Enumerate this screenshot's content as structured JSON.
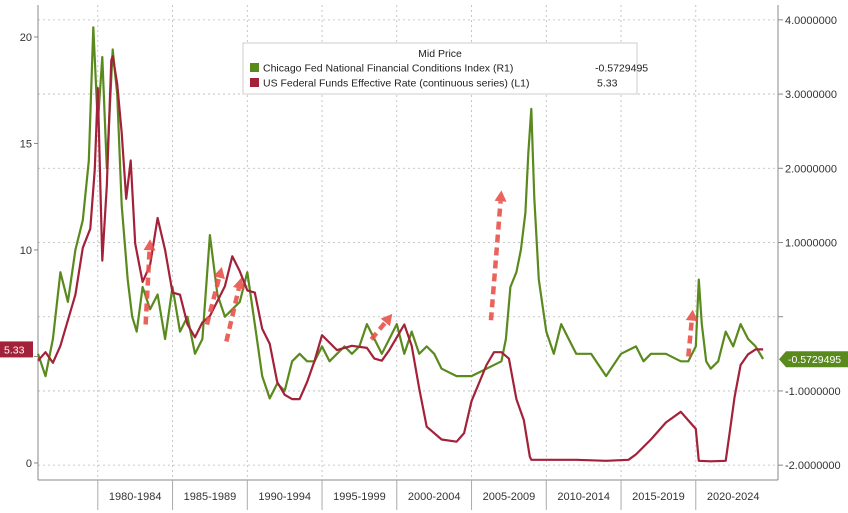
{
  "chart_data": {
    "type": "line",
    "legend": {
      "title": "Mid Price",
      "placement": "top-center",
      "entries": [
        {
          "label": "Chicago Fed National Financial Conditions Index  (R1)",
          "value": "-0.5729495",
          "color": "#5a8a1e"
        },
        {
          "label": "US Federal Funds Effective Rate (continuous series)  (L1)",
          "value": "5.33",
          "color": "#a3223a"
        }
      ]
    },
    "x_tick_labels": [
      "1980-1984",
      "1985-1989",
      "1990-1994",
      "1995-1999",
      "2000-2004",
      "2005-2009",
      "2010-2014",
      "2015-2019",
      "2020-2024"
    ],
    "xlim": [
      1976,
      2025.5
    ],
    "y_left": {
      "ticks": [
        0,
        5,
        10,
        15,
        20
      ],
      "tick_labels": [
        "0",
        "",
        "10",
        "15",
        "20"
      ],
      "ylim": [
        -0.8,
        21.5
      ]
    },
    "y_right": {
      "ticks": [
        -2,
        -1,
        0,
        1,
        2,
        3,
        4
      ],
      "tick_labels": [
        "-2.0000000",
        "-1.0000000",
        "",
        "1.0000000",
        "2.0000000",
        "3.0000000",
        "4.0000000"
      ],
      "ylim": [
        -2.2,
        4.2
      ]
    },
    "last_value_badges": [
      {
        "axis": "left",
        "value": 5.33,
        "text": "5.33",
        "color": "#a3223a"
      },
      {
        "axis": "right",
        "value": -0.5729495,
        "text": "-0.5729495",
        "color": "#5a8a1e"
      }
    ],
    "grid": true,
    "series": [
      {
        "axis": "right",
        "color": "#5a8a1e",
        "x": [
          1976,
          1976.5,
          1977,
          1977.5,
          1978,
          1978.5,
          1979,
          1979.4,
          1979.7,
          1980,
          1980.3,
          1980.6,
          1981,
          1981.3,
          1981.6,
          1982,
          1982.3,
          1982.6,
          1983,
          1983.5,
          1984,
          1984.5,
          1985,
          1985.5,
          1986,
          1986.5,
          1987,
          1987.5,
          1988,
          1988.5,
          1989,
          1989.5,
          1990,
          1990.5,
          1991,
          1991.5,
          1992,
          1992.5,
          1993,
          1993.5,
          1994,
          1994.5,
          1995,
          1995.5,
          1996,
          1996.5,
          1997,
          1997.5,
          1998,
          1998.5,
          1999,
          1999.5,
          2000,
          2000.5,
          2001,
          2001.5,
          2002,
          2002.5,
          2003,
          2004,
          2005,
          2006,
          2007,
          2007.3,
          2007.6,
          2008,
          2008.3,
          2008.6,
          2008.8,
          2009,
          2009.2,
          2009.5,
          2010,
          2010.5,
          2011,
          2011.5,
          2012,
          2013,
          2014,
          2015,
          2016,
          2016.5,
          2017,
          2018,
          2019,
          2019.5,
          2020,
          2020.2,
          2020.4,
          2020.7,
          2021,
          2021.5,
          2022,
          2022.5,
          2023,
          2023.5,
          2024,
          2024.5
        ],
        "y": [
          -0.5,
          -0.8,
          -0.3,
          0.6,
          0.2,
          0.9,
          1.3,
          2.1,
          3.9,
          2.6,
          3.5,
          2.0,
          3.6,
          3.0,
          1.5,
          0.5,
          0.0,
          -0.2,
          0.4,
          0.1,
          0.3,
          -0.3,
          0.4,
          -0.2,
          0.0,
          -0.5,
          -0.3,
          1.1,
          0.3,
          0.0,
          0.1,
          0.2,
          0.6,
          -0.1,
          -0.8,
          -1.1,
          -0.9,
          -1.0,
          -0.6,
          -0.5,
          -0.6,
          -0.6,
          -0.4,
          -0.6,
          -0.5,
          -0.4,
          -0.5,
          -0.4,
          -0.1,
          -0.3,
          -0.5,
          -0.3,
          -0.1,
          -0.5,
          -0.2,
          -0.5,
          -0.4,
          -0.5,
          -0.7,
          -0.8,
          -0.8,
          -0.7,
          -0.6,
          -0.3,
          0.4,
          0.6,
          0.9,
          1.4,
          2.2,
          2.8,
          1.6,
          0.5,
          -0.2,
          -0.5,
          -0.1,
          -0.3,
          -0.5,
          -0.5,
          -0.8,
          -0.5,
          -0.4,
          -0.6,
          -0.5,
          -0.5,
          -0.6,
          -0.6,
          -0.4,
          0.5,
          -0.1,
          -0.6,
          -0.7,
          -0.6,
          -0.2,
          -0.4,
          -0.1,
          -0.3,
          -0.4,
          -0.57
        ]
      },
      {
        "axis": "left",
        "color": "#a3223a",
        "x": [
          1976,
          1976.5,
          1977,
          1977.5,
          1978,
          1978.5,
          1979,
          1979.5,
          1979.8,
          1980,
          1980.3,
          1980.6,
          1980.9,
          1981,
          1981.3,
          1981.6,
          1981.9,
          1982.2,
          1982.5,
          1982.8,
          1983,
          1983.5,
          1984,
          1984.5,
          1985,
          1985.5,
          1986,
          1986.5,
          1987,
          1987.5,
          1988,
          1988.5,
          1989,
          1989.5,
          1990,
          1990.5,
          1991,
          1991.5,
          1992,
          1992.5,
          1993,
          1993.5,
          1994,
          1994.5,
          1995,
          1996,
          1997,
          1998,
          1998.5,
          1999,
          1999.5,
          2000,
          2000.5,
          2001,
          2001.5,
          2002,
          2003,
          2004,
          2004.5,
          2005,
          2006,
          2006.5,
          2007,
          2007.5,
          2008,
          2008.5,
          2008.9,
          2009,
          2010,
          2012,
          2014,
          2015.5,
          2016,
          2017,
          2018,
          2019,
          2019.5,
          2020,
          2020.2,
          2021,
          2022,
          2022.3,
          2022.6,
          2023,
          2023.5,
          2024,
          2024.5
        ],
        "y": [
          4.8,
          5.2,
          4.7,
          5.5,
          6.7,
          7.9,
          10.1,
          11.0,
          13.8,
          17.6,
          9.5,
          13.0,
          18.9,
          19.1,
          17.8,
          15.5,
          12.4,
          14.2,
          10.3,
          9.2,
          8.5,
          9.3,
          11.5,
          10.0,
          8.0,
          7.9,
          6.5,
          5.9,
          6.6,
          6.9,
          7.6,
          8.3,
          9.7,
          9.0,
          8.1,
          8.0,
          6.3,
          5.6,
          3.8,
          3.2,
          3.0,
          3.0,
          3.8,
          4.8,
          6.0,
          5.3,
          5.5,
          5.4,
          4.9,
          4.8,
          5.3,
          5.9,
          6.5,
          5.5,
          3.5,
          1.7,
          1.1,
          1.0,
          1.4,
          2.9,
          4.6,
          5.2,
          5.2,
          4.9,
          3.0,
          2.0,
          0.3,
          0.15,
          0.15,
          0.15,
          0.1,
          0.15,
          0.4,
          1.1,
          1.9,
          2.4,
          2.0,
          1.6,
          0.1,
          0.08,
          0.1,
          1.6,
          3.1,
          4.6,
          5.1,
          5.33,
          5.33
        ]
      }
    ],
    "annotations": [
      {
        "type": "dashed-arrow",
        "x0": 1983.2,
        "y0": 6.5,
        "x1": 1983.5,
        "y1": 10.5,
        "axis": "left"
      },
      {
        "type": "dashed-arrow",
        "x0": 1987.3,
        "y0": 6.5,
        "x1": 1988.3,
        "y1": 9.2,
        "axis": "left"
      },
      {
        "type": "dashed-arrow",
        "x0": 1988.6,
        "y0": 5.7,
        "x1": 1989.6,
        "y1": 8.7,
        "axis": "left"
      },
      {
        "type": "dashed-arrow",
        "x0": 1998.3,
        "y0": 5.8,
        "x1": 1999.7,
        "y1": 7.0,
        "axis": "left"
      },
      {
        "type": "dashed-arrow",
        "x0": 2006.3,
        "y0": 6.7,
        "x1": 2007.0,
        "y1": 12.8,
        "axis": "left"
      },
      {
        "type": "dashed-arrow",
        "x0": 2019.5,
        "y0": 5.0,
        "x1": 2019.8,
        "y1": 7.2,
        "axis": "left"
      }
    ]
  }
}
